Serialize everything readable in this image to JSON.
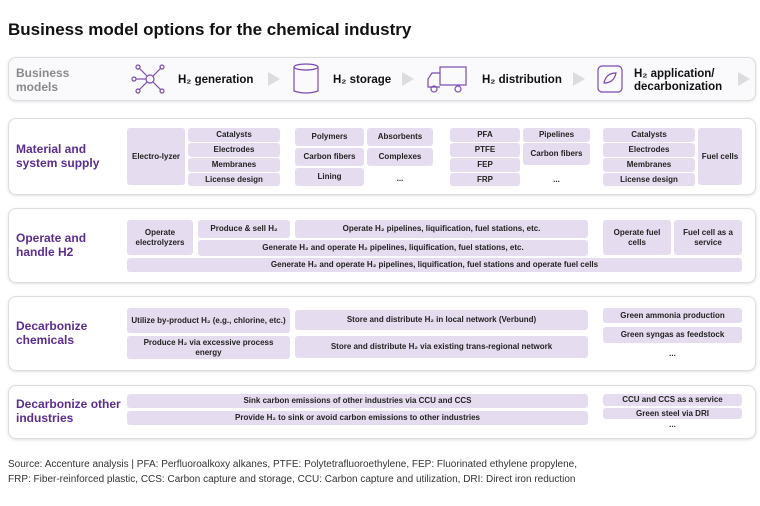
{
  "title": "Business model options for the chemical industry",
  "header": {
    "label": "Business models",
    "columns": [
      "H₂ generation",
      "H₂ storage",
      "H₂ distribution",
      "H₂ application/ decarbonization"
    ]
  },
  "rows": [
    {
      "label": "Material and system supply",
      "cells": [
        "Electro-lyzer",
        "Catalysts",
        "Electrodes",
        "Membranes",
        "License design",
        "Polymers",
        "Absorbents",
        "Carbon fibers",
        "Complexes",
        "Lining",
        "...",
        "PFA",
        "PTFE",
        "FEP",
        "FRP",
        "Pipelines",
        "Carbon fibers",
        "...",
        "Catalysts",
        "Electrodes",
        "Membranes",
        "License design",
        "Fuel cells"
      ]
    },
    {
      "label": "Operate and handle H2",
      "cells": [
        "Operate electrolyzers",
        "Produce & sell H₂",
        "Operate H₂ pipelines, liquification, fuel stations, etc.",
        "Generate H₂ and operate H₂ pipelines, liquification, fuel stations, etc.",
        "Operate fuel cells",
        "Fuel cell as a service",
        "Generate H₂ and operate H₂ pipelines, liquification, fuel stations and operate fuel cells"
      ]
    },
    {
      "label": "Decarbonize chemicals",
      "cells": [
        "Utilize by-product H₂ (e.g., chlorine, etc.)",
        "Produce H₂ via excessive process energy",
        "Store and distribute H₂ in local network (Verbund)",
        "Store and distribute H₂ via existing trans-regional network",
        "Green ammonia production",
        "Green syngas as feedstock",
        "..."
      ]
    },
    {
      "label": "Decarbonize other industries",
      "cells": [
        "Sink carbon emissions of other industries via CCU and CCS",
        "Provide H₂ to sink or avoid carbon emissions to other industries",
        "CCU and CCS as a service",
        "Green steel via DRI",
        "..."
      ]
    }
  ],
  "source": [
    "Source: Accenture analysis | PFA: Perfluoroalkoxy alkanes, PTFE: Polytetrafluoroethylene, FEP: Fluorinated ethylene propylene,",
    "FRP: Fiber-reinforced plastic, CCS: Carbon capture and storage, CCU: Carbon capture and utilization, DRI: Direct iron reduction"
  ]
}
